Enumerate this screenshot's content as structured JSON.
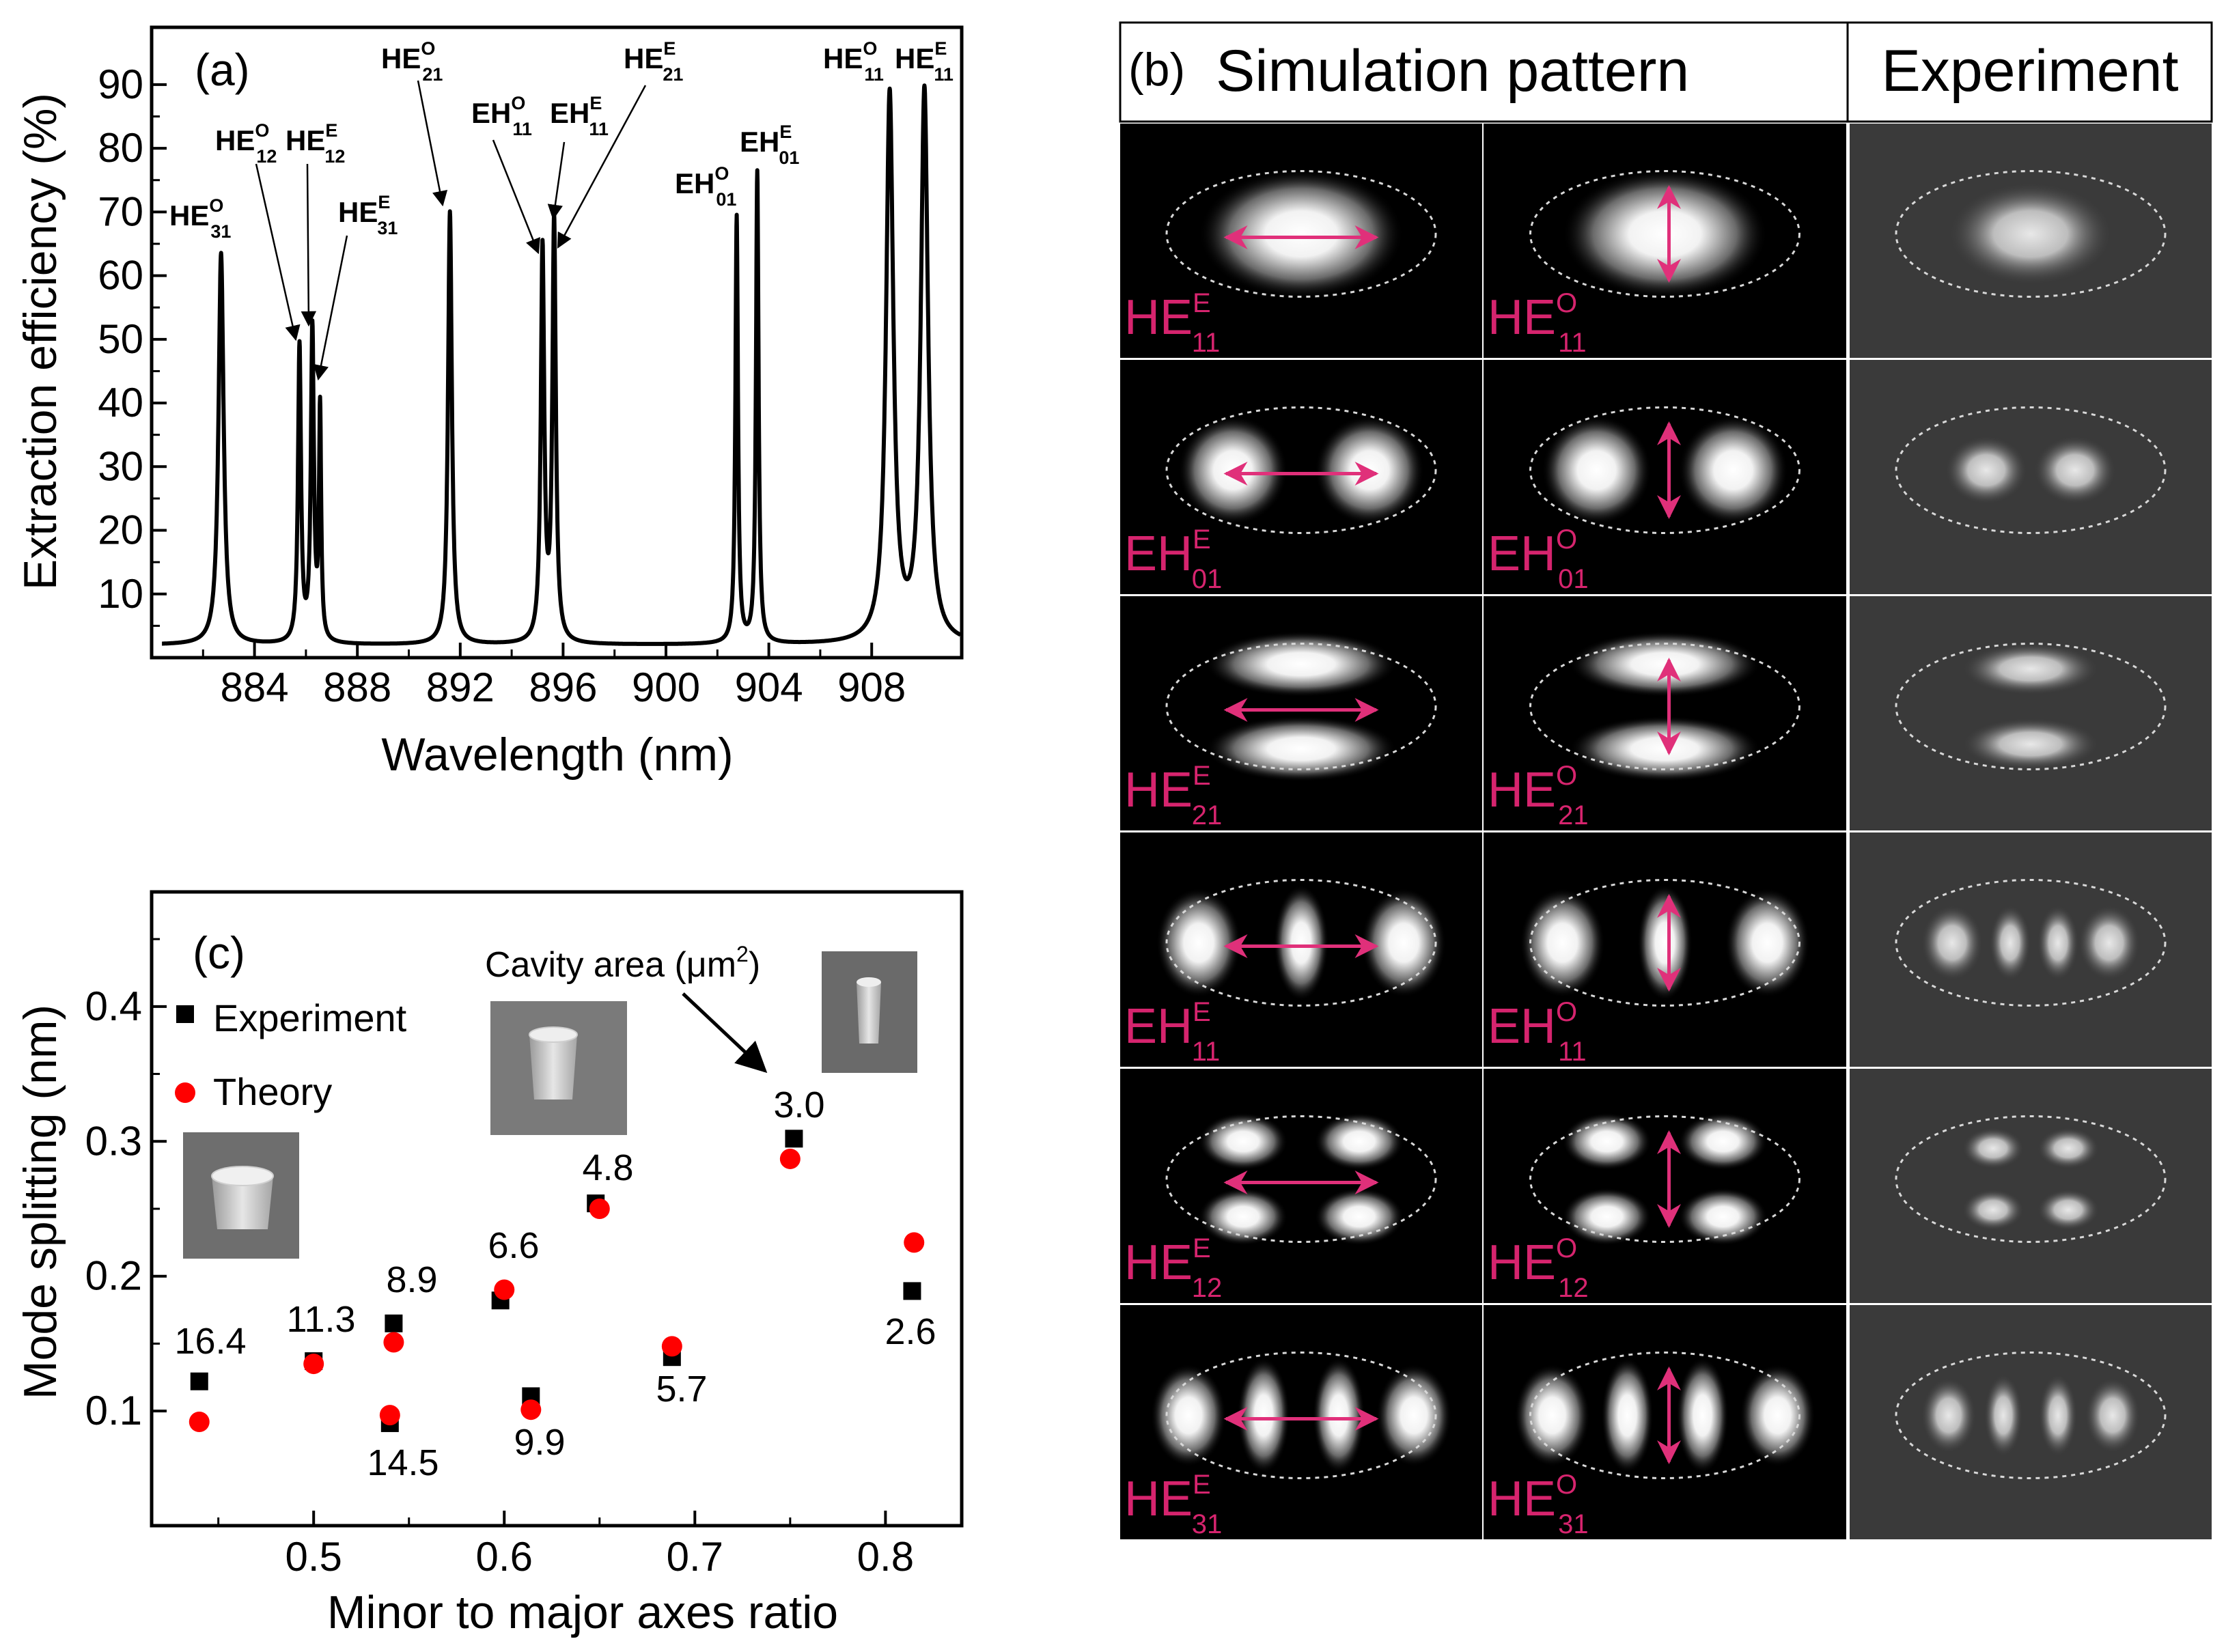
{
  "colors": {
    "axis": "#000000",
    "marker_experiment": "#000000",
    "marker_theory": "#ff0000",
    "mode_label": "#d6246e",
    "arrow": "#e0307a",
    "panel_bg": "#000000",
    "exp_bg": "#3a3a3a"
  },
  "chart_data": [
    {
      "id": "a",
      "type": "line",
      "panel_label": "(a)",
      "xlabel": "Wavelength (nm)",
      "ylabel": "Extraction efficiency (%)",
      "xlim": [
        880.0,
        911.5
      ],
      "ylim": [
        0,
        99
      ],
      "xticks": [
        884,
        888,
        892,
        896,
        900,
        904,
        908
      ],
      "xtick_labels": [
        "884",
        "888",
        "892",
        "896",
        "900",
        "904",
        "908"
      ],
      "yticks": [
        10,
        20,
        30,
        40,
        50,
        60,
        70,
        80,
        90
      ],
      "ytick_labels": [
        "10",
        "20",
        "30",
        "40",
        "50",
        "60",
        "70",
        "80",
        "90"
      ],
      "baseline": 2.0,
      "peaks": [
        {
          "x": 882.7,
          "h": 61.5,
          "w": 0.12
        },
        {
          "x": 885.75,
          "h": 46.5,
          "w": 0.07
        },
        {
          "x": 886.25,
          "h": 49.0,
          "w": 0.07
        },
        {
          "x": 886.55,
          "h": 36.0,
          "w": 0.05
        },
        {
          "x": 891.6,
          "h": 68.0,
          "w": 0.09
        },
        {
          "x": 895.2,
          "h": 61.5,
          "w": 0.08
        },
        {
          "x": 895.65,
          "h": 66.0,
          "w": 0.08
        },
        {
          "x": 902.75,
          "h": 67.0,
          "w": 0.06
        },
        {
          "x": 903.55,
          "h": 74.0,
          "w": 0.06
        },
        {
          "x": 908.7,
          "h": 86.0,
          "w": 0.17
        },
        {
          "x": 910.05,
          "h": 86.5,
          "w": 0.17
        }
      ],
      "annotations": [
        {
          "base": "HE",
          "sup": "O",
          "sub": "31"
        },
        {
          "base": "HE",
          "sup": "O",
          "sub": "12"
        },
        {
          "base": "HE",
          "sup": "E",
          "sub": "12"
        },
        {
          "base": "HE",
          "sup": "E",
          "sub": "31"
        },
        {
          "base": "HE",
          "sup": "O",
          "sub": "21"
        },
        {
          "base": "EH",
          "sup": "O",
          "sub": "11"
        },
        {
          "base": "EH",
          "sup": "E",
          "sub": "11"
        },
        {
          "base": "HE",
          "sup": "E",
          "sub": "21"
        },
        {
          "base": "EH",
          "sup": "O",
          "sub": "01"
        },
        {
          "base": "EH",
          "sup": "E",
          "sub": "01"
        },
        {
          "base": "HE",
          "sup": "O",
          "sub": "11"
        },
        {
          "base": "HE",
          "sup": "E",
          "sub": "11"
        }
      ]
    },
    {
      "id": "c",
      "type": "scatter",
      "panel_label": "(c)",
      "xlabel": "Minor to major axes ratio",
      "ylabel": "Mode splitting (nm)",
      "xlim": [
        0.415,
        0.84
      ],
      "ylim": [
        0.015,
        0.485
      ],
      "xticks": [
        0.5,
        0.6,
        0.7,
        0.8
      ],
      "xtick_labels": [
        "0.5",
        "0.6",
        "0.7",
        "0.8"
      ],
      "yticks": [
        0.1,
        0.2,
        0.3,
        0.4
      ],
      "ytick_labels": [
        "0.1",
        "0.2",
        "0.3",
        "0.4"
      ],
      "legend": [
        "Experiment",
        "Theory"
      ],
      "series": [
        {
          "name": "Experiment",
          "marker": "square",
          "x": [
            0.44,
            0.5,
            0.542,
            0.54,
            0.598,
            0.614,
            0.648,
            0.688,
            0.752,
            0.814
          ],
          "y": [
            0.122,
            0.137,
            0.165,
            0.091,
            0.182,
            0.111,
            0.254,
            0.14,
            0.302,
            0.189
          ]
        },
        {
          "name": "Theory",
          "marker": "circle",
          "x": [
            0.44,
            0.5,
            0.542,
            0.54,
            0.6,
            0.614,
            0.65,
            0.688,
            0.75,
            0.815
          ],
          "y": [
            0.092,
            0.135,
            0.151,
            0.097,
            0.19,
            0.101,
            0.25,
            0.148,
            0.287,
            0.225
          ]
        }
      ],
      "point_labels": [
        "16.4",
        "11.3",
        "8.9",
        "14.5",
        "6.6",
        "9.9",
        "4.8",
        "5.7",
        "3.0",
        "2.6"
      ],
      "cavity_area_label": "Cavity area (μm",
      "cavity_area_sup": "2",
      "cavity_area_close": ")"
    }
  ],
  "panel_b": {
    "label": "(b)",
    "sim_header": "Simulation pattern",
    "exp_header": "Experiment",
    "rows": [
      {
        "base": "HE",
        "sub": "11",
        "left_sup": "E",
        "right_sup": "O"
      },
      {
        "base": "EH",
        "sub": "01",
        "left_sup": "E",
        "right_sup": "O"
      },
      {
        "base": "HE",
        "sub": "21",
        "left_sup": "E",
        "right_sup": "O"
      },
      {
        "base": "EH",
        "sub": "11",
        "left_sup": "E",
        "right_sup": "O"
      },
      {
        "base": "HE",
        "sub": "12",
        "left_sup": "E",
        "right_sup": "O"
      },
      {
        "base": "HE",
        "sub": "31",
        "left_sup": "E",
        "right_sup": "O"
      }
    ]
  }
}
